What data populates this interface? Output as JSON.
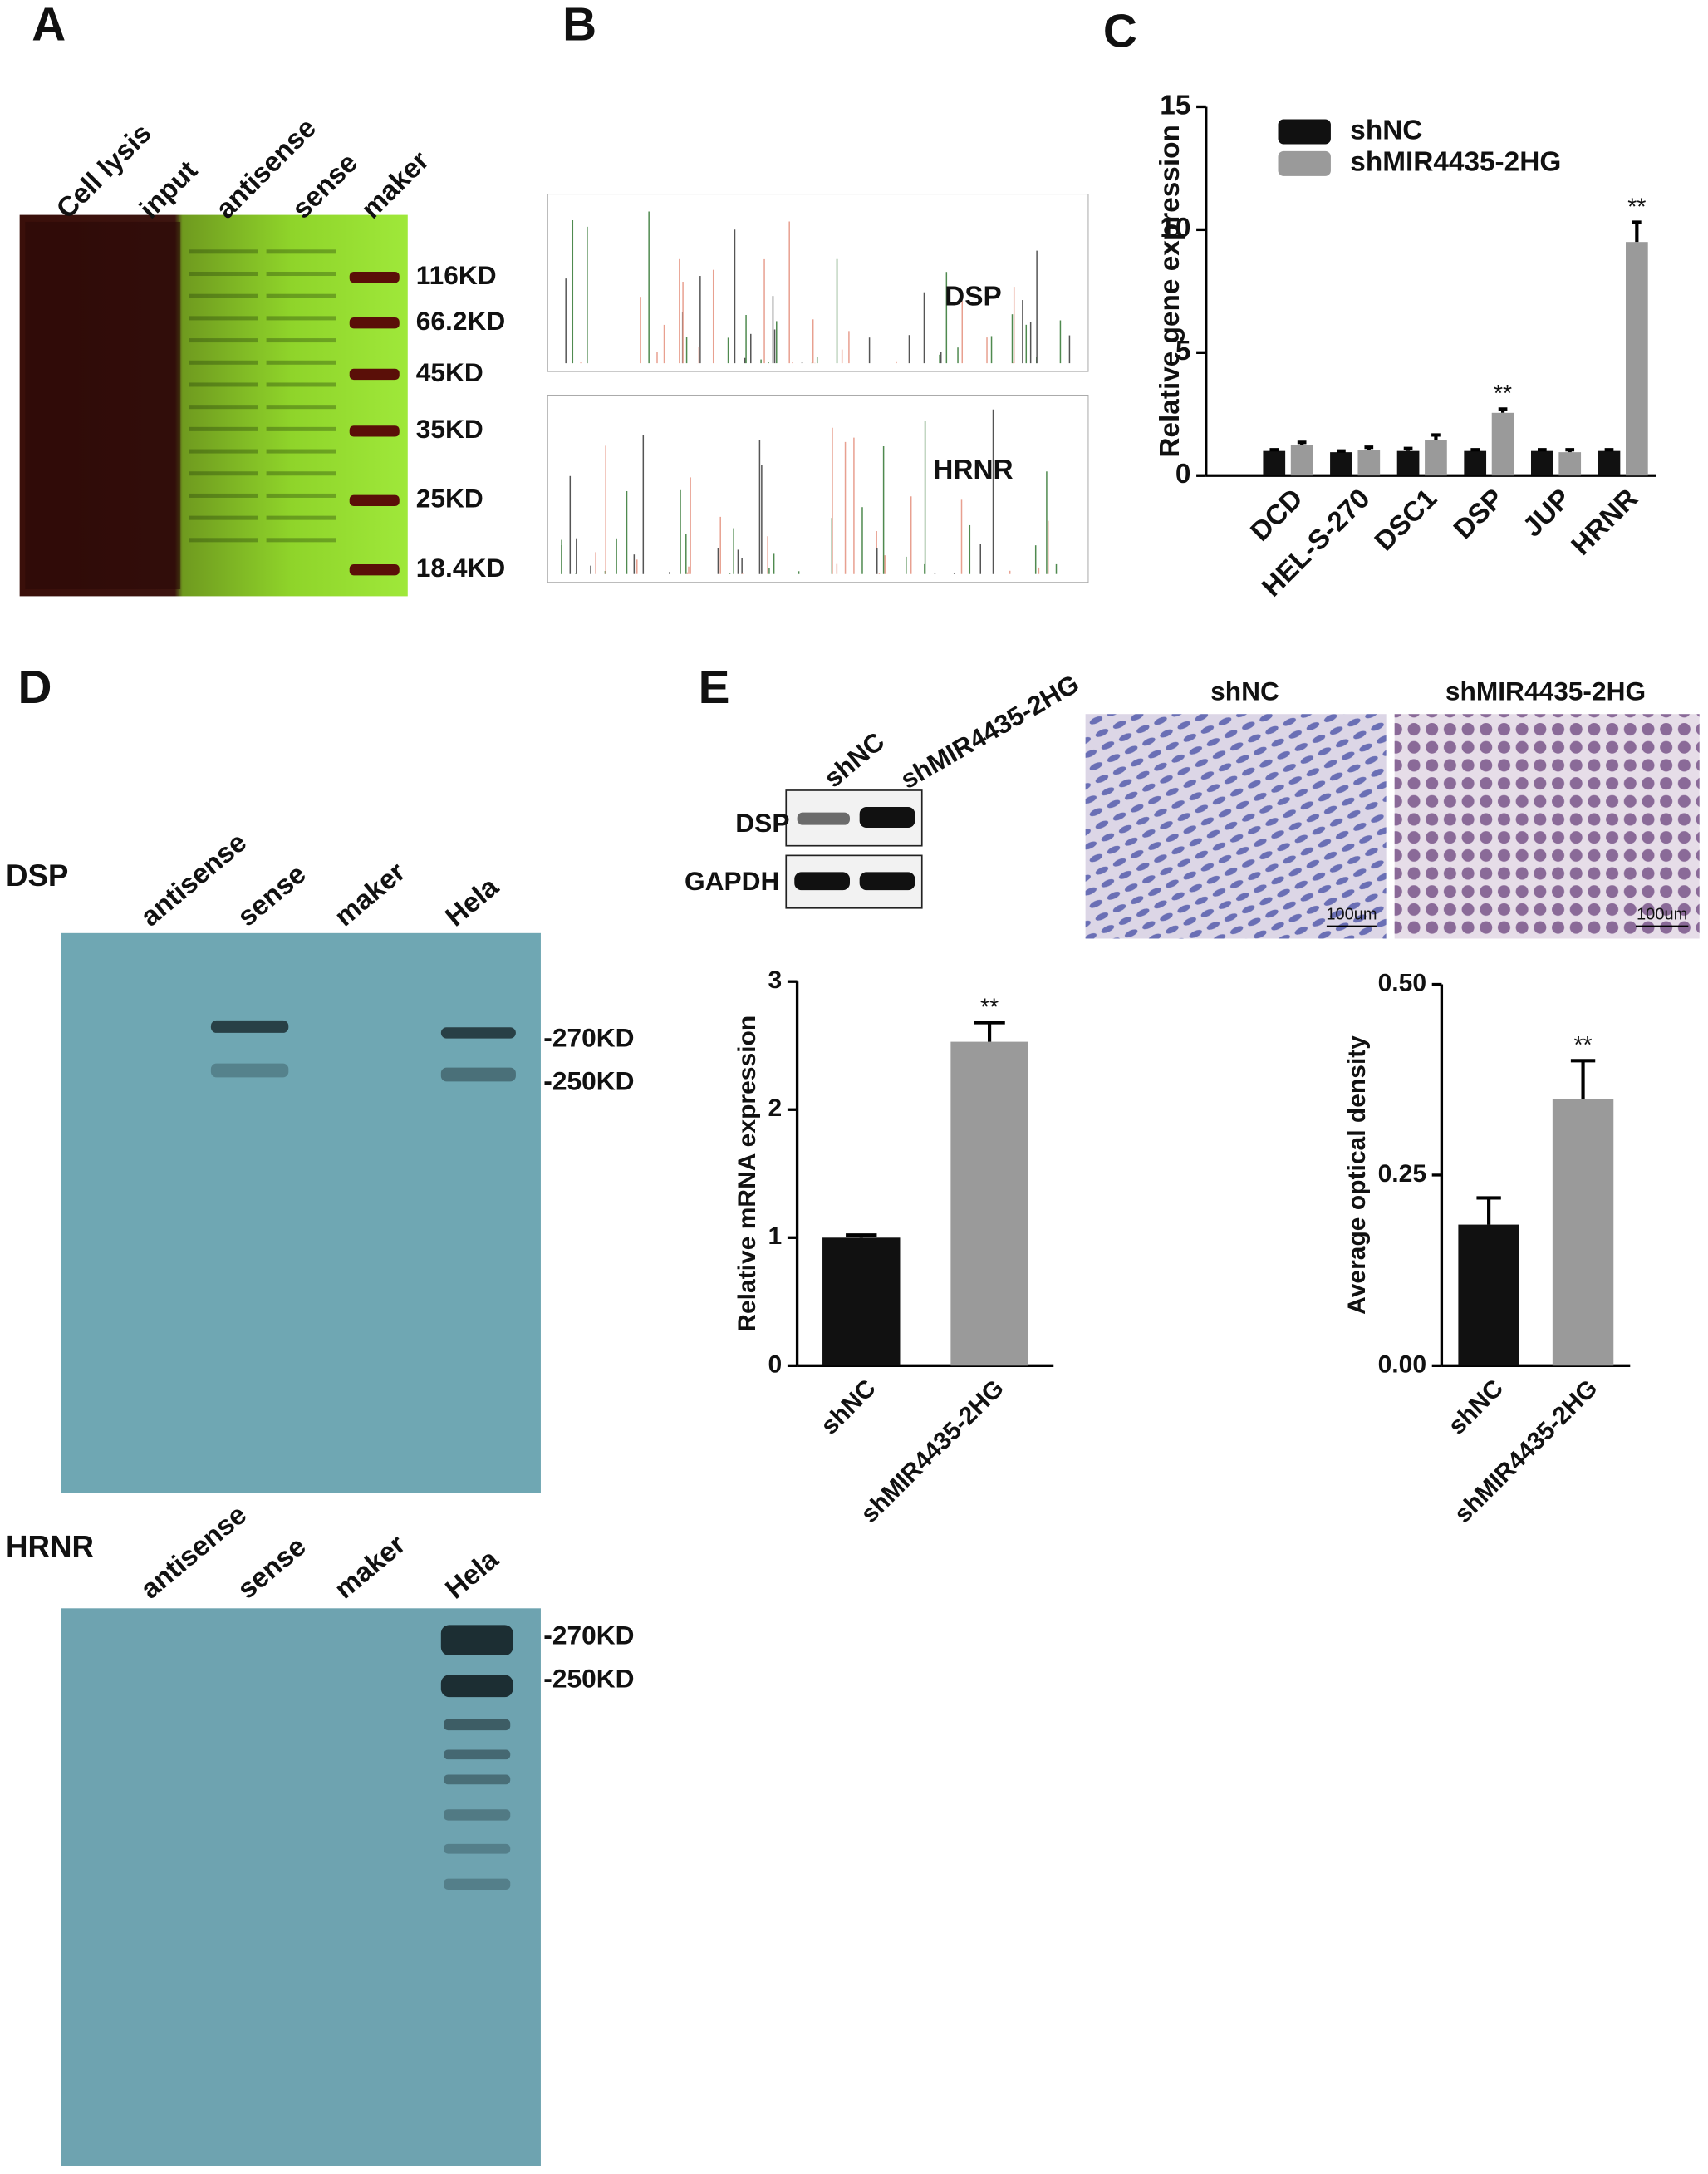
{
  "panels": {
    "A": {
      "label": "A",
      "lanes": [
        "Cell lysis",
        "input",
        "antisense",
        "sense",
        "maker"
      ],
      "markers": [
        "116KD",
        "66.2KD",
        "45KD",
        "35KD",
        "25KD",
        "18.4KD"
      ]
    },
    "B": {
      "label": "B",
      "peptides": [
        "DSP",
        "HRNR"
      ]
    },
    "C": {
      "label": "C"
    },
    "D": {
      "label": "D",
      "blots": [
        {
          "protein": "DSP",
          "lanes": [
            "antisense",
            "sense",
            "maker",
            "Hela"
          ],
          "markers": [
            "-270KD",
            "-250KD"
          ]
        },
        {
          "protein": "HRNR",
          "lanes": [
            "antisense",
            "sense",
            "maker",
            "Hela"
          ],
          "markers": [
            "-270KD",
            "-250KD"
          ]
        }
      ]
    },
    "E": {
      "label": "E",
      "western": {
        "lanes": [
          "shNC",
          "shMIR4435-2HG"
        ],
        "rows": [
          "DSP",
          "GAPDH"
        ]
      },
      "ihc": {
        "groups": [
          "shNC",
          "shMIR4435-2HG"
        ],
        "scale_bars": [
          "100um",
          "100um"
        ]
      }
    }
  },
  "chart_data": [
    {
      "type": "bar",
      "ylabel": "Relative  gene expression",
      "categories": [
        "DCD",
        "HEL-S-270",
        "DSC1",
        "DSP",
        "JUP",
        "HRNR"
      ],
      "series": [
        {
          "name": "shNC",
          "color": "#111111",
          "values": [
            1.0,
            0.95,
            1.0,
            1.0,
            1.0,
            1.0
          ],
          "errors": [
            0.05,
            0.05,
            0.1,
            0.05,
            0.05,
            0.05
          ],
          "annotations": [
            null,
            null,
            null,
            null,
            null,
            null
          ]
        },
        {
          "name": "shMIR4435-2HG",
          "color": "#9a9a9a",
          "values": [
            1.25,
            1.05,
            1.45,
            2.55,
            0.95,
            9.5
          ],
          "errors": [
            0.1,
            0.1,
            0.2,
            0.15,
            0.1,
            0.8
          ],
          "annotations": [
            null,
            null,
            null,
            "**",
            null,
            "**"
          ]
        }
      ],
      "ylim": [
        0,
        15
      ],
      "yticks": [
        0,
        5,
        10,
        15
      ],
      "legend": "top-left"
    },
    {
      "type": "bar",
      "ylabel": "Relative  mRNA expression",
      "categories": [
        "shNC",
        "shMIR4435-2HG"
      ],
      "values": [
        1.0,
        2.53
      ],
      "errors": [
        0.02,
        0.15
      ],
      "colors": [
        "#111111",
        "#9a9a9a"
      ],
      "annotations": [
        null,
        "**"
      ],
      "ylim": [
        0,
        3
      ],
      "yticks": [
        0,
        1,
        2,
        3
      ]
    },
    {
      "type": "bar",
      "ylabel": "Average optical density",
      "categories": [
        "shNC",
        "shMIR4435-2HG"
      ],
      "values": [
        0.185,
        0.35
      ],
      "errors": [
        0.035,
        0.05
      ],
      "colors": [
        "#111111",
        "#9a9a9a"
      ],
      "annotations": [
        null,
        "**"
      ],
      "ylim": [
        0,
        0.5
      ],
      "yticks": [
        {
          "value": 0,
          "label": "0.00"
        },
        {
          "value": 0.25,
          "label": "0.25"
        },
        {
          "value": 0.5,
          "label": "0.50"
        }
      ]
    }
  ]
}
